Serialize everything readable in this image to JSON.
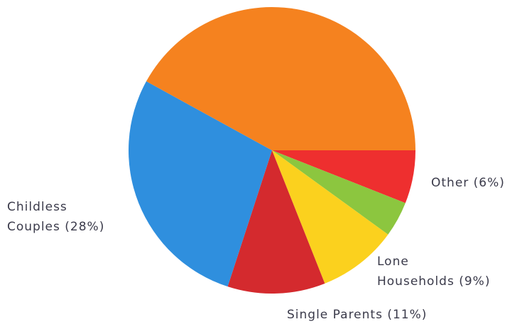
{
  "chart_data": {
    "type": "pie",
    "categories": [
      "Other (6%)",
      null,
      "Lone\nHouseholds (9%)",
      "Single Parents (11%)",
      "Childless\nCouples (28%)",
      null
    ],
    "values": [
      6,
      4,
      9,
      11,
      28,
      42
    ],
    "colors": [
      "#ee2f2f",
      "#8cc63f",
      "#fbd11e",
      "#d42a2e",
      "#2f8fde",
      "#f5821f"
    ]
  }
}
